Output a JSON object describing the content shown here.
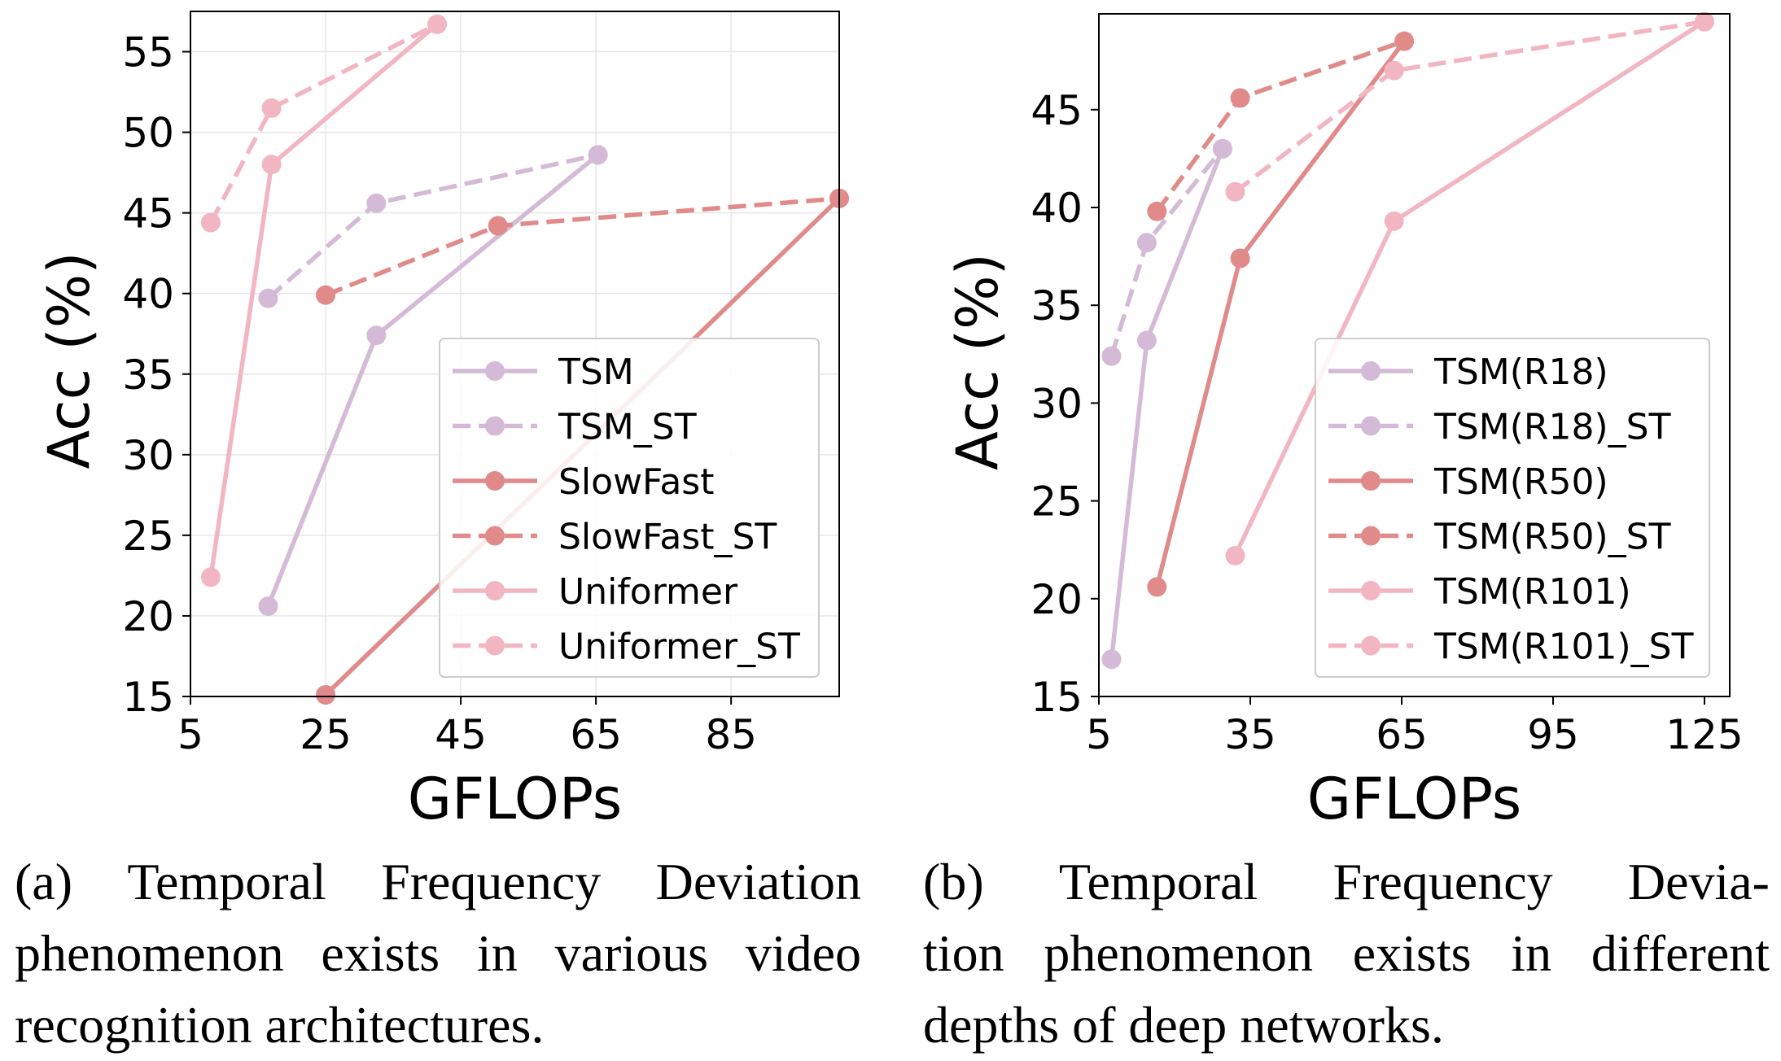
{
  "chart_data": [
    {
      "type": "line",
      "xlabel": "GFLOPs",
      "ylabel": "Acc (%)",
      "xlim": [
        5,
        101
      ],
      "ylim": [
        15,
        57.5
      ],
      "xticks": [
        5,
        25,
        45,
        65,
        85
      ],
      "yticks": [
        15,
        20,
        25,
        30,
        35,
        40,
        45,
        50,
        55
      ],
      "grid": true,
      "legend_position": "lower-right",
      "series": [
        {
          "name": "TSM",
          "style": "solid",
          "color": "#d4bad6",
          "x": [
            16.5,
            32.5,
            65.3
          ],
          "y": [
            20.6,
            37.4,
            48.6
          ]
        },
        {
          "name": "TSM_ST",
          "style": "dashed",
          "color": "#d4bad6",
          "x": [
            16.5,
            32.5,
            65.3
          ],
          "y": [
            39.7,
            45.6,
            48.6
          ]
        },
        {
          "name": "SlowFast",
          "style": "solid",
          "color": "#e08a8a",
          "x": [
            25.0,
            101.0
          ],
          "y": [
            15.1,
            45.9
          ]
        },
        {
          "name": "SlowFast_ST",
          "style": "dashed",
          "color": "#e08a8a",
          "x": [
            25.0,
            50.5,
            101.0
          ],
          "y": [
            39.9,
            44.2,
            45.9
          ]
        },
        {
          "name": "Uniformer",
          "style": "solid",
          "color": "#f2b6c2",
          "x": [
            8.0,
            17.0,
            41.5
          ],
          "y": [
            22.4,
            48.0,
            56.7
          ]
        },
        {
          "name": "Uniformer_ST",
          "style": "dashed",
          "color": "#f2b6c2",
          "x": [
            8.0,
            17.0,
            41.5
          ],
          "y": [
            44.4,
            51.5,
            56.7
          ]
        }
      ]
    },
    {
      "type": "line",
      "xlabel": "GFLOPs",
      "ylabel": "Acc (%)",
      "xlim": [
        5,
        130
      ],
      "ylim": [
        15,
        49.9
      ],
      "xticks": [
        5,
        35,
        65,
        95,
        125
      ],
      "yticks": [
        15,
        20,
        25,
        30,
        35,
        40,
        45
      ],
      "grid": false,
      "legend_position": "lower-right",
      "series": [
        {
          "name": "TSM(R18)",
          "style": "solid",
          "color": "#d4bad6",
          "x": [
            7.5,
            14.5,
            29.5
          ],
          "y": [
            16.9,
            33.2,
            43.0
          ]
        },
        {
          "name": "TSM(R18)_ST",
          "style": "dashed",
          "color": "#d4bad6",
          "x": [
            7.5,
            14.5,
            29.5
          ],
          "y": [
            32.4,
            38.2,
            43.0
          ]
        },
        {
          "name": "TSM(R50)",
          "style": "solid",
          "color": "#e08a8a",
          "x": [
            16.5,
            33.0,
            65.5
          ],
          "y": [
            20.6,
            37.4,
            48.5
          ]
        },
        {
          "name": "TSM(R50)_ST",
          "style": "dashed",
          "color": "#e08a8a",
          "x": [
            16.5,
            33.0,
            65.5
          ],
          "y": [
            39.8,
            45.6,
            48.5
          ]
        },
        {
          "name": "TSM(R101)",
          "style": "solid",
          "color": "#f2b6c2",
          "x": [
            32.0,
            63.5,
            125.0
          ],
          "y": [
            22.2,
            39.3,
            49.5
          ]
        },
        {
          "name": "TSM(R101)_ST",
          "style": "dashed",
          "color": "#f2b6c2",
          "x": [
            32.0,
            63.5,
            125.0
          ],
          "y": [
            40.8,
            47.0,
            49.5
          ]
        }
      ]
    }
  ],
  "captions": {
    "a": {
      "lines": [
        "(a) Temporal Frequency Deviation",
        "phenomenon exists in various video",
        "recognition architectures."
      ]
    },
    "b": {
      "lines": [
        "(b) Temporal Frequency Devia-",
        "tion phenomenon exists in different",
        "depths of deep networks."
      ]
    }
  }
}
